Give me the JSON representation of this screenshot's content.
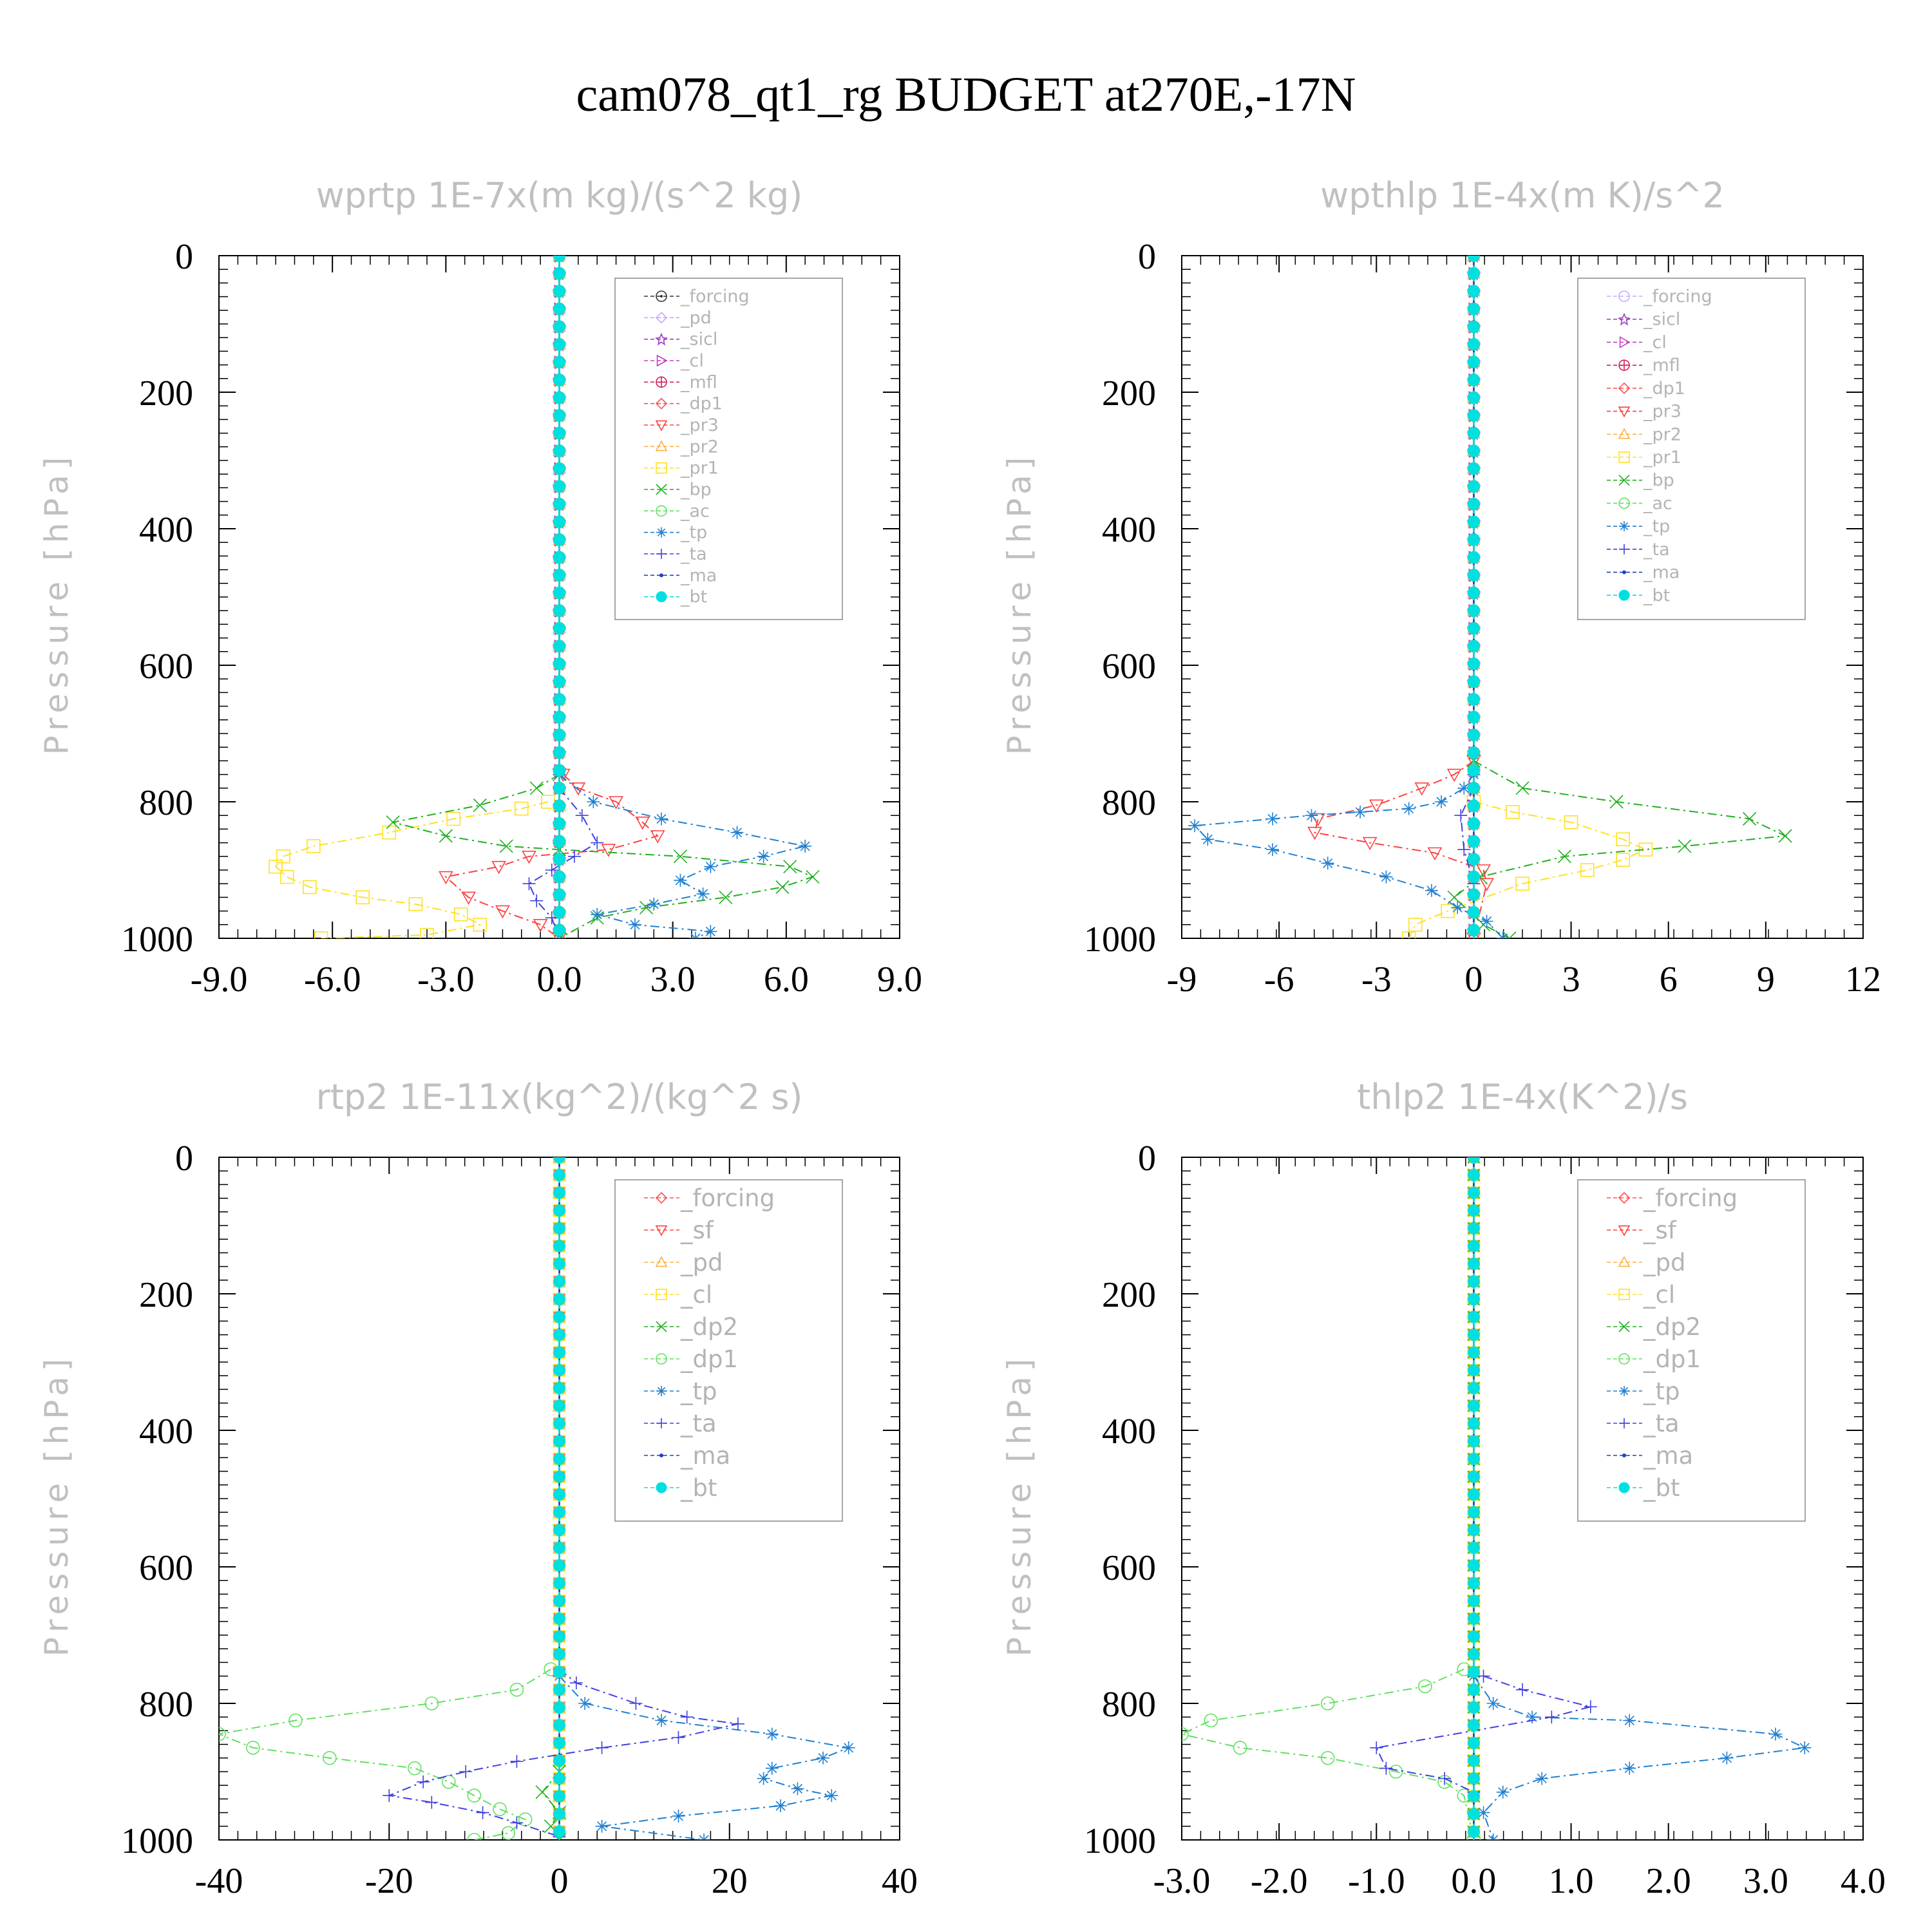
{
  "title": "cam078_qt1_rg  BUDGET at270E,-17N",
  "chart_data": [
    {
      "type": "line",
      "title": "wprtp   1E-7x(m kg)/(s^2 kg)",
      "ylabel": "Pressure [hPa]",
      "xticks": [
        "-9.0",
        "-6.0",
        "-3.0",
        "0.0",
        "3.0",
        "6.0",
        "9.0"
      ],
      "yticks": [
        "0",
        "200",
        "400",
        "600",
        "800",
        "1000"
      ],
      "xlim": [
        -9,
        9
      ],
      "ylim": [
        1000,
        0
      ],
      "legend_position": "top-right",
      "series": [
        {
          "name": "_forcing",
          "color": "#333333",
          "marker": "circle-dot",
          "x": [
            0,
            0
          ],
          "y": [
            0,
            1000
          ]
        },
        {
          "name": "_pd",
          "color": "#c8a8ff",
          "marker": "diamond",
          "x": [
            0,
            0
          ],
          "y": [
            0,
            1000
          ]
        },
        {
          "name": "_sicl",
          "color": "#a040c0",
          "marker": "star",
          "x": [
            0,
            0
          ],
          "y": [
            0,
            1000
          ]
        },
        {
          "name": "_cl",
          "color": "#c040c0",
          "marker": "tri-right",
          "x": [
            0,
            0
          ],
          "y": [
            0,
            1000
          ]
        },
        {
          "name": "_mfl",
          "color": "#d02060",
          "marker": "circle-plus",
          "x": [
            0,
            0
          ],
          "y": [
            0,
            1000
          ]
        },
        {
          "name": "_dp1",
          "color": "#ff5050",
          "marker": "diamond",
          "x": [
            0,
            0
          ],
          "y": [
            0,
            1000
          ]
        },
        {
          "name": "_pr3",
          "color": "#ff4040",
          "marker": "tri-down",
          "x": [
            0.1,
            0.5,
            1.5,
            2.2,
            2.6,
            1.3,
            -0.8,
            -1.6,
            -3.0,
            -2.4,
            -1.5,
            -0.5,
            0
          ],
          "y": [
            760,
            780,
            800,
            830,
            850,
            870,
            880,
            895,
            910,
            940,
            960,
            980,
            1000
          ]
        },
        {
          "name": "_pr2",
          "color": "#ffb040",
          "marker": "triangle",
          "x": [
            0,
            0
          ],
          "y": [
            0,
            1000
          ]
        },
        {
          "name": "_pr1",
          "color": "#ffe020",
          "marker": "square",
          "x": [
            -0.3,
            -1.0,
            -2.8,
            -4.5,
            -6.5,
            -7.3,
            -7.5,
            -7.2,
            -6.6,
            -5.2,
            -3.8,
            -2.6,
            -2.1,
            -3.5,
            -6.3
          ],
          "y": [
            800,
            810,
            825,
            845,
            865,
            880,
            895,
            910,
            925,
            940,
            950,
            965,
            980,
            995,
            1000
          ]
        },
        {
          "name": "_bp",
          "color": "#20b020",
          "marker": "x",
          "x": [
            0,
            -0.6,
            -2.1,
            -4.4,
            -3.0,
            -1.4,
            0,
            3.2,
            6.1,
            6.7,
            5.9,
            4.4,
            2.3,
            1.0,
            0
          ],
          "y": [
            760,
            780,
            805,
            830,
            850,
            865,
            870,
            880,
            895,
            910,
            925,
            940,
            955,
            970,
            1000
          ]
        },
        {
          "name": "_ac",
          "color": "#60e060",
          "marker": "circle",
          "x": [
            0,
            0
          ],
          "y": [
            0,
            1000
          ]
        },
        {
          "name": "_tp",
          "color": "#2080d0",
          "marker": "asterisk",
          "x": [
            0,
            0.9,
            2.7,
            4.7,
            6.5,
            5.4,
            4.0,
            3.2,
            3.8,
            2.5,
            1.0,
            2.0,
            4.0,
            3.6
          ],
          "y": [
            760,
            800,
            825,
            845,
            865,
            880,
            895,
            915,
            935,
            950,
            965,
            980,
            990,
            1000
          ]
        },
        {
          "name": "_ta",
          "color": "#4040e0",
          "marker": "plus",
          "x": [
            0,
            0.6,
            1.0,
            0.4,
            -0.2,
            -0.8,
            -0.6,
            -0.2,
            0
          ],
          "y": [
            780,
            820,
            860,
            880,
            900,
            920,
            945,
            970,
            1000
          ]
        },
        {
          "name": "_ma",
          "color": "#2040c0",
          "marker": "dot",
          "x": [
            0,
            0
          ],
          "y": [
            0,
            1000
          ]
        },
        {
          "name": "_bt",
          "color": "#00e0e0",
          "marker": "filled-circle",
          "x": [
            0,
            0
          ],
          "y": [
            0,
            1000
          ]
        }
      ]
    },
    {
      "type": "line",
      "title": "wpthlp   1E-4x(m K)/s^2",
      "ylabel": "Pressure [hPa]",
      "xticks": [
        "-9",
        "-6",
        "-3",
        "0",
        "3",
        "6",
        "9",
        "12"
      ],
      "yticks": [
        "0",
        "200",
        "400",
        "600",
        "800",
        "1000"
      ],
      "xlim": [
        -9,
        12
      ],
      "ylim": [
        1000,
        0
      ],
      "legend_position": "top-right",
      "series": [
        {
          "name": "_forcing",
          "color": "#c8a8ff",
          "marker": "circle",
          "x": [
            0,
            0
          ],
          "y": [
            0,
            1000
          ]
        },
        {
          "name": "_sicl",
          "color": "#a040c0",
          "marker": "star",
          "x": [
            0,
            0
          ],
          "y": [
            0,
            1000
          ]
        },
        {
          "name": "_cl",
          "color": "#c040c0",
          "marker": "tri-right",
          "x": [
            0,
            0
          ],
          "y": [
            0,
            1000
          ]
        },
        {
          "name": "_mfl",
          "color": "#d02060",
          "marker": "circle-plus",
          "x": [
            0,
            0
          ],
          "y": [
            0,
            1000
          ]
        },
        {
          "name": "_dp1",
          "color": "#ff5050",
          "marker": "diamond",
          "x": [
            0,
            0
          ],
          "y": [
            0,
            1000
          ]
        },
        {
          "name": "_pr3",
          "color": "#ff4040",
          "marker": "tri-down",
          "x": [
            0,
            -0.6,
            -1.6,
            -3.0,
            -4.8,
            -4.9,
            -3.2,
            -1.2,
            0.3,
            0.4,
            0
          ],
          "y": [
            740,
            760,
            780,
            805,
            825,
            845,
            860,
            875,
            900,
            920,
            1000
          ]
        },
        {
          "name": "_pr2",
          "color": "#ffb040",
          "marker": "triangle",
          "x": [
            0,
            0
          ],
          "y": [
            0,
            1000
          ]
        },
        {
          "name": "_pr1",
          "color": "#ffe020",
          "marker": "square",
          "x": [
            0,
            1.2,
            3.0,
            4.6,
            5.3,
            4.6,
            3.5,
            1.5,
            -0.8,
            -1.8,
            -2.0
          ],
          "y": [
            800,
            815,
            830,
            855,
            870,
            885,
            900,
            920,
            960,
            980,
            1000
          ]
        },
        {
          "name": "_bp",
          "color": "#20b020",
          "marker": "x",
          "x": [
            0,
            1.5,
            4.4,
            8.5,
            9.6,
            6.5,
            2.8,
            0.2,
            -0.6,
            0.3,
            1.1
          ],
          "y": [
            740,
            780,
            800,
            825,
            850,
            865,
            880,
            910,
            940,
            980,
            1000
          ]
        },
        {
          "name": "_ac",
          "color": "#60e060",
          "marker": "circle",
          "x": [
            0,
            0
          ],
          "y": [
            0,
            1000
          ]
        },
        {
          "name": "_tp",
          "color": "#2080d0",
          "marker": "asterisk",
          "x": [
            0,
            -0.3,
            -1.0,
            -2.0,
            -3.5,
            -5.0,
            -6.2,
            -8.6,
            -8.2,
            -6.2,
            -4.5,
            -2.7,
            -1.3,
            -0.5,
            0.4,
            0.9
          ],
          "y": [
            760,
            780,
            800,
            810,
            815,
            820,
            825,
            835,
            855,
            870,
            890,
            910,
            930,
            955,
            975,
            1000
          ]
        },
        {
          "name": "_ta",
          "color": "#4040e0",
          "marker": "plus",
          "x": [
            0,
            -0.4,
            -0.3,
            0
          ],
          "y": [
            780,
            820,
            870,
            920
          ]
        },
        {
          "name": "_ma",
          "color": "#2040c0",
          "marker": "dot",
          "x": [
            0,
            0
          ],
          "y": [
            0,
            1000
          ]
        },
        {
          "name": "_bt",
          "color": "#00e0e0",
          "marker": "filled-circle",
          "x": [
            0,
            0
          ],
          "y": [
            0,
            1000
          ]
        }
      ]
    },
    {
      "type": "line",
      "title": "rtp2   1E-11x(kg^2)/(kg^2 s)",
      "ylabel": "Pressure [hPa]",
      "xticks": [
        "-40",
        "-20",
        "0",
        "20",
        "40"
      ],
      "yticks": [
        "0",
        "200",
        "400",
        "600",
        "800",
        "1000"
      ],
      "xlim": [
        -40,
        40
      ],
      "ylim": [
        1000,
        0
      ],
      "legend_position": "top-right",
      "series": [
        {
          "name": "_forcing",
          "color": "#ff5050",
          "marker": "diamond",
          "x": [
            0,
            0
          ],
          "y": [
            0,
            1000
          ]
        },
        {
          "name": "_sf",
          "color": "#ff4040",
          "marker": "tri-down",
          "x": [
            0,
            0
          ],
          "y": [
            0,
            1000
          ]
        },
        {
          "name": "_pd",
          "color": "#ffb040",
          "marker": "triangle",
          "x": [
            0,
            0
          ],
          "y": [
            0,
            1000
          ]
        },
        {
          "name": "_cl",
          "color": "#ffe020",
          "marker": "square",
          "x": [
            0,
            0
          ],
          "y": [
            0,
            1000
          ]
        },
        {
          "name": "_dp2",
          "color": "#20b020",
          "marker": "x",
          "x": [
            0,
            -2,
            0,
            -1,
            0
          ],
          "y": [
            900,
            930,
            960,
            980,
            1000
          ]
        },
        {
          "name": "_dp1",
          "color": "#60e060",
          "marker": "circle",
          "x": [
            -1,
            -5,
            -15,
            -31,
            -40,
            -36,
            -27,
            -17,
            -13,
            -10,
            -7,
            -4,
            -6,
            -10
          ],
          "y": [
            750,
            780,
            800,
            825,
            845,
            865,
            880,
            895,
            915,
            935,
            955,
            970,
            990,
            1000
          ]
        },
        {
          "name": "_tp",
          "color": "#2080d0",
          "marker": "asterisk",
          "x": [
            0,
            3,
            12,
            25,
            34,
            31,
            25,
            24,
            28,
            32,
            26,
            14,
            5,
            17
          ],
          "y": [
            760,
            800,
            825,
            845,
            865,
            880,
            895,
            910,
            925,
            935,
            950,
            965,
            980,
            1000
          ]
        },
        {
          "name": "_ta",
          "color": "#4040e0",
          "marker": "plus",
          "x": [
            0,
            2,
            9,
            15,
            21,
            14,
            5,
            -5,
            -11,
            -16,
            -20,
            -15,
            -9,
            -5,
            0
          ],
          "y": [
            750,
            770,
            800,
            820,
            830,
            850,
            865,
            885,
            900,
            915,
            935,
            945,
            960,
            975,
            995
          ]
        },
        {
          "name": "_ma",
          "color": "#2040c0",
          "marker": "dot",
          "x": [
            0,
            0
          ],
          "y": [
            0,
            1000
          ]
        },
        {
          "name": "_bt",
          "color": "#00e0e0",
          "marker": "filled-circle",
          "x": [
            0,
            0
          ],
          "y": [
            0,
            1000
          ]
        }
      ]
    },
    {
      "type": "line",
      "title": "thlp2   1E-4x(K^2)/s",
      "ylabel": "Pressure [hPa]",
      "xticks": [
        "-3.0",
        "-2.0",
        "-1.0",
        "0.0",
        "1.0",
        "2.0",
        "3.0",
        "4.0"
      ],
      "yticks": [
        "0",
        "200",
        "400",
        "600",
        "800",
        "1000"
      ],
      "xlim": [
        -3,
        4
      ],
      "ylim": [
        1000,
        0
      ],
      "legend_position": "top-right",
      "series": [
        {
          "name": "_forcing",
          "color": "#ff5050",
          "marker": "diamond",
          "x": [
            0,
            0
          ],
          "y": [
            0,
            1000
          ]
        },
        {
          "name": "_sf",
          "color": "#ff4040",
          "marker": "tri-down",
          "x": [
            0,
            0
          ],
          "y": [
            0,
            1000
          ]
        },
        {
          "name": "_pd",
          "color": "#ffb040",
          "marker": "triangle",
          "x": [
            0,
            0
          ],
          "y": [
            0,
            1000
          ]
        },
        {
          "name": "_cl",
          "color": "#ffe020",
          "marker": "square",
          "x": [
            0,
            0
          ],
          "y": [
            0,
            1000
          ]
        },
        {
          "name": "_dp2",
          "color": "#20b020",
          "marker": "x",
          "x": [
            0,
            0
          ],
          "y": [
            0,
            1000
          ]
        },
        {
          "name": "_dp1",
          "color": "#60e060",
          "marker": "circle",
          "x": [
            -0.1,
            -0.5,
            -1.5,
            -2.7,
            -3.0,
            -2.4,
            -1.5,
            -0.8,
            -0.3,
            -0.1,
            0
          ],
          "y": [
            750,
            775,
            800,
            825,
            845,
            865,
            880,
            900,
            915,
            935,
            1000
          ]
        },
        {
          "name": "_tp",
          "color": "#2080d0",
          "marker": "asterisk",
          "x": [
            0,
            0.2,
            0.6,
            1.6,
            3.1,
            3.4,
            2.6,
            1.6,
            0.7,
            0.3,
            0.1,
            0.2
          ],
          "y": [
            760,
            800,
            820,
            825,
            845,
            865,
            880,
            895,
            910,
            930,
            960,
            1000
          ]
        },
        {
          "name": "_ta",
          "color": "#4040e0",
          "marker": "plus",
          "x": [
            0.1,
            0.5,
            1.2,
            0.8,
            -1.0,
            -0.9,
            -0.3,
            0
          ],
          "y": [
            760,
            780,
            805,
            820,
            865,
            895,
            910,
            930
          ]
        },
        {
          "name": "_ma",
          "color": "#2040c0",
          "marker": "dot",
          "x": [
            0,
            0
          ],
          "y": [
            0,
            1000
          ]
        },
        {
          "name": "_bt",
          "color": "#00e0e0",
          "marker": "filled-circle",
          "x": [
            0,
            0
          ],
          "y": [
            0,
            1000
          ]
        }
      ]
    }
  ]
}
